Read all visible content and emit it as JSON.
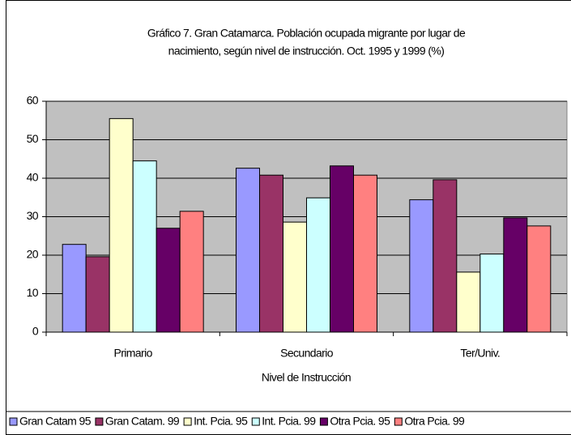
{
  "chart_data": {
    "type": "bar",
    "title": [
      "Gráfico 7. Gran Catamarca. Población ocupada migrante por lugar de",
      "nacimiento, según nivel de instrucción. Oct. 1995 y 1999 (%)"
    ],
    "x_label": "Nivel de Instrucción",
    "categories": [
      "Primario",
      "Secundario",
      "Ter/Univ."
    ],
    "series": [
      {
        "name": "Gran Catam 95",
        "color": "#9999ff",
        "values": [
          22.8,
          42.6,
          34.4
        ]
      },
      {
        "name": "Gran Catam. 99",
        "color": "#993366",
        "values": [
          19.6,
          40.8,
          39.6
        ]
      },
      {
        "name": "Int. Pcia. 95",
        "color": "#ffffcc",
        "values": [
          55.5,
          28.6,
          15.6
        ]
      },
      {
        "name": "Int. Pcia. 99",
        "color": "#ccffff",
        "values": [
          44.5,
          34.9,
          20.3
        ]
      },
      {
        "name": "Otra Pcia. 95",
        "color": "#660066",
        "values": [
          27.0,
          43.2,
          29.7
        ]
      },
      {
        "name": "Otra Pcia. 99",
        "color": "#ff8080",
        "values": [
          31.4,
          40.8,
          27.6
        ]
      }
    ],
    "ylim": [
      0,
      60
    ],
    "yticks": [
      0,
      10,
      20,
      30,
      40,
      50,
      60
    ],
    "grid": true,
    "legend": "bottom"
  }
}
